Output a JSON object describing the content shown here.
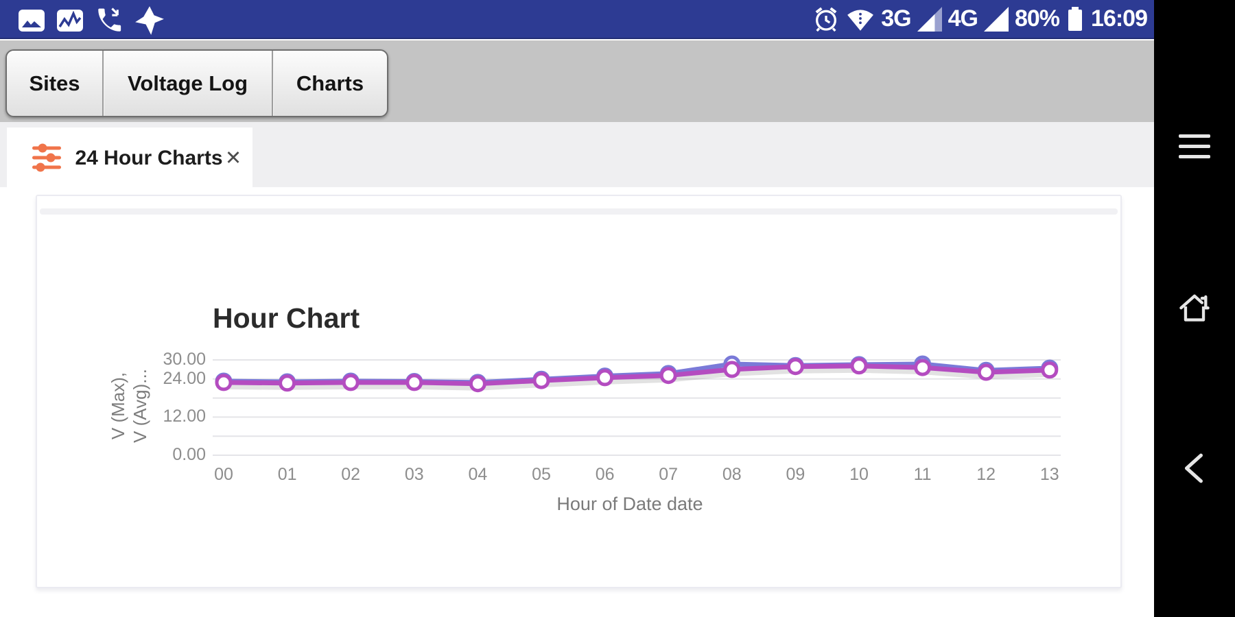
{
  "status_bar": {
    "time": "16:09",
    "battery_percent": "80%",
    "network_3g": "3G",
    "network_4g": "4G",
    "bg_color": "#2d3b93",
    "notification_icons": [
      "screenshot-icon",
      "chart-notification-icon",
      "incoming-call-icon",
      "antivirus-icon"
    ],
    "status_icons": [
      "alarm-icon",
      "wifi-icon",
      "signal-3g-icon",
      "signal-4g-icon",
      "battery-icon"
    ]
  },
  "toolbar": {
    "buttons": [
      {
        "label": "Sites"
      },
      {
        "label": "Voltage Log"
      },
      {
        "label": "Charts"
      }
    ]
  },
  "tab": {
    "label": "24 Hour Charts",
    "icon": "sliders-icon",
    "accent_color": "#f0744a",
    "close_glyph": "✕"
  },
  "navbar": {
    "icons": [
      "menu-icon",
      "home-icon",
      "back-icon"
    ]
  },
  "chart_data": {
    "type": "line",
    "title": "Hour Chart",
    "xlabel": "Hour of Date date",
    "ylabel_lines": [
      "V (Max),",
      "V (Avg)..."
    ],
    "x": [
      "00",
      "01",
      "02",
      "03",
      "04",
      "05",
      "06",
      "07",
      "08",
      "09",
      "10",
      "11",
      "12",
      "13"
    ],
    "series": [
      {
        "name": "V (Max)",
        "color": "#7a7ad8",
        "values": [
          23.3,
          23.1,
          23.3,
          23.2,
          22.9,
          23.9,
          24.9,
          25.7,
          28.7,
          28.2,
          28.5,
          28.7,
          26.7,
          27.4
        ]
      },
      {
        "name": "V (Avg)",
        "color": "#b44cc0",
        "values": [
          22.9,
          22.7,
          22.9,
          22.9,
          22.5,
          23.5,
          24.4,
          25.1,
          27.0,
          27.9,
          28.1,
          27.6,
          26.1,
          26.8
        ]
      }
    ],
    "y_ticks": [
      {
        "value": 30,
        "label": "30.00"
      },
      {
        "value": 24,
        "label": "24.00"
      },
      {
        "value": 12,
        "label": "12.00"
      },
      {
        "value": 0,
        "label": "0.00"
      }
    ],
    "gridlines": [
      0,
      6,
      12,
      18,
      24,
      30
    ],
    "ylim": [
      0,
      32.8
    ],
    "grid": true,
    "legend": "none",
    "marker": {
      "fill": "#ffffff"
    }
  }
}
